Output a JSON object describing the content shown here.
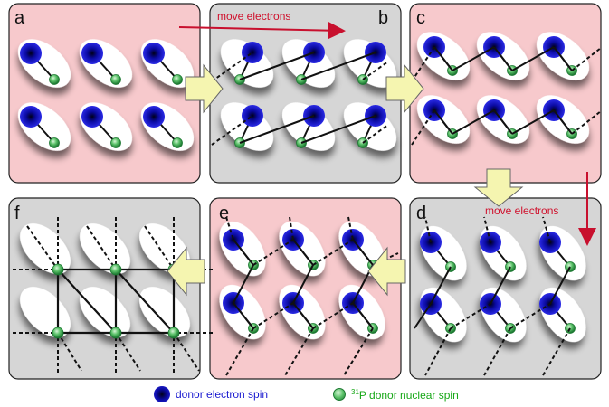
{
  "panels": [
    {
      "label": "a",
      "bg": "#f7c9cc"
    },
    {
      "label": "b",
      "bg": "#d6d6d6"
    },
    {
      "label": "c",
      "bg": "#f7c9cc"
    },
    {
      "label": "d",
      "bg": "#d6d6d6"
    },
    {
      "label": "e",
      "bg": "#f7c9cc"
    },
    {
      "label": "f",
      "bg": "#d6d6d6"
    }
  ],
  "annotations": {
    "top_arrow": "move electrons",
    "right_arrow": "move electrons",
    "color": "#d0102c"
  },
  "legend": {
    "electron_label": "donor electron spin",
    "nuclear_label_sup": "31",
    "nuclear_label_rest": "P donor nuclear spin",
    "electron_color": "#1010d0",
    "nuclear_color": "#10b010"
  },
  "colors": {
    "pink_panel": "#f7c9cc",
    "gray_panel": "#d6d6d6",
    "flow_arrow": "#f5f5b0",
    "electron": "#1010c0",
    "nucleus": "#3fae5a"
  }
}
